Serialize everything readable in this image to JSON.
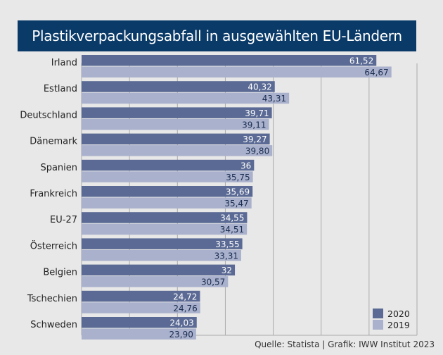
{
  "chart_data": {
    "type": "bar",
    "orientation": "horizontal",
    "title": "Plastikverpackungsabfall in ausgewählten EU-Ländern",
    "categories": [
      "Irland",
      "Estland",
      "Deutschland",
      "Dänemark",
      "Spanien",
      "Frankreich",
      "EU-27",
      "Österreich",
      "Belgien",
      "Tschechien",
      "Schweden"
    ],
    "series": [
      {
        "name": "2020",
        "color": "#5a6a94",
        "label_color": "#ffffff",
        "values": [
          61.52,
          40.32,
          39.71,
          39.27,
          36,
          35.69,
          34.55,
          33.55,
          32,
          24.72,
          24.03
        ],
        "labels": [
          "61,52",
          "40,32",
          "39,71",
          "39,27",
          "36",
          "35,69",
          "34,55",
          "33,55",
          "32",
          "24,72",
          "24,03"
        ]
      },
      {
        "name": "2019",
        "color": "#a9b1cc",
        "label_color": "#1a2c50",
        "values": [
          64.67,
          43.31,
          39.11,
          39.8,
          35.75,
          35.47,
          34.51,
          33.31,
          30.57,
          24.76,
          23.9
        ],
        "labels": [
          "64,67",
          "43,31",
          "39,11",
          "39,80",
          "35,75",
          "35,47",
          "34,51",
          "33,31",
          "30,57",
          "24,76",
          "23,90"
        ]
      }
    ],
    "xlim": [
      0,
      70
    ],
    "grid": true,
    "legend": "bottom-right"
  },
  "source": "Quelle: Statista | Grafik: IWW Institut 2023"
}
